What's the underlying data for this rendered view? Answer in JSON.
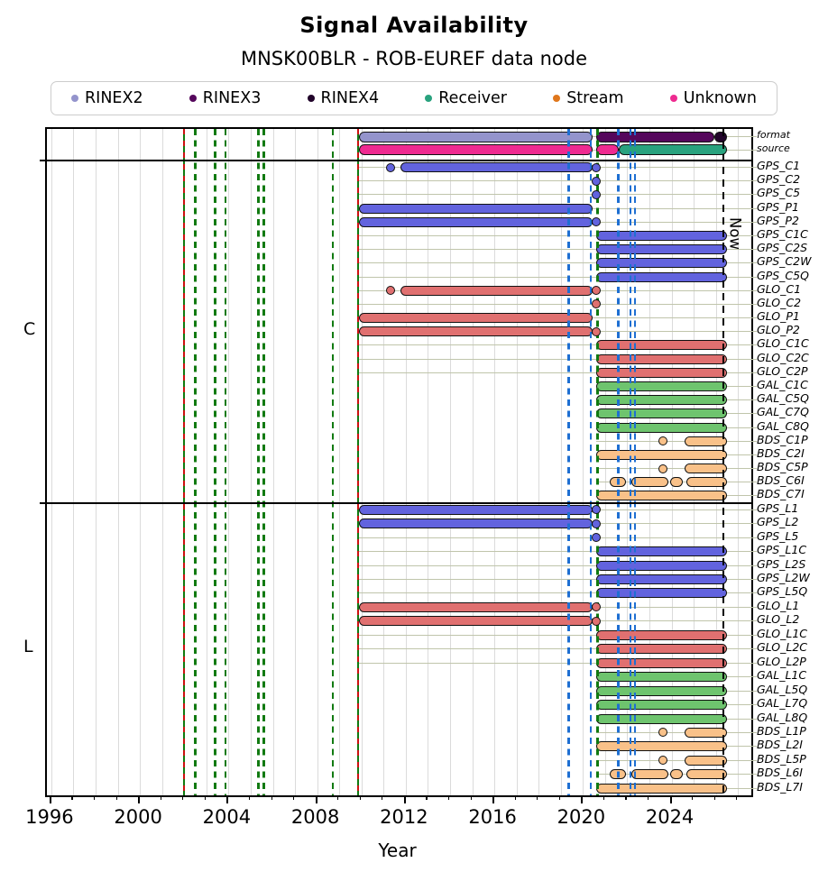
{
  "title": "Signal Availability",
  "subtitle": "MNSK00BLR - ROB-EUREF data node",
  "legend": [
    {
      "label": "RINEX2",
      "color_key": "rinex2"
    },
    {
      "label": "RINEX3",
      "color_key": "rinex3"
    },
    {
      "label": "RINEX4",
      "color_key": "rinex4"
    },
    {
      "label": "Receiver",
      "color_key": "receiver"
    },
    {
      "label": "Stream",
      "color_key": "stream"
    },
    {
      "label": "Unknown",
      "color_key": "unknown"
    }
  ],
  "chart_data": {
    "type": "gantt-availability",
    "title": "Signal Availability",
    "subtitle": "MNSK00BLR - ROB-EUREF data node",
    "xlabel": "Year",
    "now_label": "Now",
    "axis": {
      "xmin": 1995.8,
      "xmax": 2027.6,
      "major_ticks": [
        1996,
        2000,
        2004,
        2008,
        2012,
        2016,
        2020,
        2024
      ],
      "minor_tick_start": 1996,
      "minor_tick_end": 2027,
      "grid": "vertical-yearly"
    },
    "colors": {
      "gps": "#6263de",
      "glo": "#e07070",
      "gal": "#6ec46e",
      "bds": "#f9c189",
      "rinex2": "#9494cc",
      "rinex3": "#55075c",
      "rinex4": "#21042a",
      "receiver": "#29a27e",
      "stream": "#e0771c",
      "unknown": "#ee2a90",
      "event_green": "#117a11",
      "event_blue": "#1e6fd2",
      "event_red": "#cc1111",
      "leader_line": "#c0c5ab"
    },
    "now_x": 2026.35,
    "event_lines": [
      {
        "x": 2002.0,
        "style": "redgreen"
      },
      {
        "x": 2002.5,
        "style": "green"
      },
      {
        "x": 2003.4,
        "style": "green"
      },
      {
        "x": 2003.85,
        "style": "green"
      },
      {
        "x": 2005.35,
        "style": "green"
      },
      {
        "x": 2005.6,
        "style": "green"
      },
      {
        "x": 2008.7,
        "style": "green"
      },
      {
        "x": 2009.85,
        "style": "redgreen"
      },
      {
        "x": 2019.35,
        "style": "blue"
      },
      {
        "x": 2020.35,
        "style": "blue"
      },
      {
        "x": 2020.65,
        "style": "green"
      },
      {
        "x": 2021.6,
        "style": "blue"
      },
      {
        "x": 2022.15,
        "style": "blue"
      },
      {
        "x": 2022.35,
        "style": "blue"
      },
      {
        "x": 2026.35,
        "style": "now"
      }
    ],
    "top_rows": [
      {
        "label": "format",
        "line_start": 2009.85,
        "bars": [
          {
            "s": 2009.9,
            "e": 2020.45,
            "c": "rinex2"
          },
          {
            "s": 2020.6,
            "e": 2025.95,
            "c": "rinex3"
          },
          {
            "s": 2025.95,
            "e": 2026.5,
            "c": "rinex4"
          }
        ]
      },
      {
        "label": "source",
        "line_start": 2009.85,
        "bars": [
          {
            "s": 2009.9,
            "e": 2020.45,
            "c": "unknown"
          },
          {
            "s": 2020.6,
            "e": 2021.6,
            "c": "unknown"
          },
          {
            "s": 2021.6,
            "e": 2026.5,
            "c": "receiver"
          }
        ]
      }
    ],
    "sections": [
      {
        "name": "C",
        "rows": [
          {
            "label": "GPS_C1",
            "color": "gps",
            "line_start": 2009.85,
            "bars": [
              [
                2011.75,
                2020.45
              ]
            ],
            "dots": [
              2011.3,
              2020.6
            ]
          },
          {
            "label": "GPS_C2",
            "color": "gps",
            "line_start": 2009.85,
            "bars": [],
            "dots": [
              2020.6
            ]
          },
          {
            "label": "GPS_C5",
            "color": "gps",
            "line_start": 2009.85,
            "bars": [],
            "dots": [
              2020.6
            ]
          },
          {
            "label": "GPS_P1",
            "color": "gps",
            "line_start": 2009.85,
            "bars": [
              [
                2009.9,
                2020.45
              ]
            ],
            "dots": []
          },
          {
            "label": "GPS_P2",
            "color": "gps",
            "line_start": 2009.85,
            "bars": [
              [
                2009.9,
                2020.45
              ]
            ],
            "dots": [
              2020.6
            ]
          },
          {
            "label": "GPS_C1C",
            "color": "gps",
            "line_start": 2009.85,
            "bars": [
              [
                2020.6,
                2026.5
              ]
            ],
            "dots": []
          },
          {
            "label": "GPS_C2S",
            "color": "gps",
            "line_start": 2009.85,
            "bars": [
              [
                2020.6,
                2026.5
              ]
            ],
            "dots": []
          },
          {
            "label": "GPS_C2W",
            "color": "gps",
            "line_start": 2009.85,
            "bars": [
              [
                2020.6,
                2026.5
              ]
            ],
            "dots": []
          },
          {
            "label": "GPS_C5Q",
            "color": "gps",
            "line_start": 2009.85,
            "bars": [
              [
                2020.6,
                2026.5
              ]
            ],
            "dots": []
          },
          {
            "label": "GLO_C1",
            "color": "glo",
            "line_start": 2009.85,
            "bars": [
              [
                2011.75,
                2020.45
              ]
            ],
            "dots": [
              2011.3,
              2020.6
            ]
          },
          {
            "label": "GLO_C2",
            "color": "glo",
            "line_start": 2009.85,
            "bars": [],
            "dots": [
              2020.6
            ]
          },
          {
            "label": "GLO_P1",
            "color": "glo",
            "line_start": 2009.85,
            "bars": [
              [
                2009.9,
                2020.45
              ]
            ],
            "dots": []
          },
          {
            "label": "GLO_P2",
            "color": "glo",
            "line_start": 2009.85,
            "bars": [
              [
                2009.9,
                2020.45
              ]
            ],
            "dots": [
              2020.6
            ]
          },
          {
            "label": "GLO_C1C",
            "color": "glo",
            "line_start": 2009.85,
            "bars": [
              [
                2020.6,
                2026.5
              ]
            ],
            "dots": []
          },
          {
            "label": "GLO_C2C",
            "color": "glo",
            "line_start": 2009.85,
            "bars": [
              [
                2020.6,
                2026.5
              ]
            ],
            "dots": []
          },
          {
            "label": "GLO_C2P",
            "color": "glo",
            "line_start": 2009.85,
            "bars": [
              [
                2020.6,
                2026.5
              ]
            ],
            "dots": []
          },
          {
            "label": "GAL_C1C",
            "color": "gal",
            "line_start": 2020.6,
            "bars": [
              [
                2020.6,
                2026.5
              ]
            ],
            "dots": []
          },
          {
            "label": "GAL_C5Q",
            "color": "gal",
            "line_start": 2020.6,
            "bars": [
              [
                2020.6,
                2026.5
              ]
            ],
            "dots": []
          },
          {
            "label": "GAL_C7Q",
            "color": "gal",
            "line_start": 2020.6,
            "bars": [
              [
                2020.6,
                2026.5
              ]
            ],
            "dots": []
          },
          {
            "label": "GAL_C8Q",
            "color": "gal",
            "line_start": 2020.6,
            "bars": [
              [
                2020.6,
                2026.5
              ]
            ],
            "dots": []
          },
          {
            "label": "BDS_C1P",
            "color": "bds",
            "line_start": 2020.6,
            "bars": [
              [
                2024.6,
                2026.5
              ]
            ],
            "dots": [
              2023.6
            ]
          },
          {
            "label": "BDS_C2I",
            "color": "bds",
            "line_start": 2020.6,
            "bars": [
              [
                2020.6,
                2026.5
              ]
            ],
            "dots": []
          },
          {
            "label": "BDS_C5P",
            "color": "bds",
            "line_start": 2020.6,
            "bars": [
              [
                2024.6,
                2026.5
              ]
            ],
            "dots": [
              2023.6
            ]
          },
          {
            "label": "BDS_C6I",
            "color": "bds",
            "line_start": 2020.6,
            "bars": [
              [
                2021.2,
                2021.95
              ],
              [
                2022.2,
                2023.85
              ],
              [
                2023.95,
                2024.5
              ],
              [
                2024.65,
                2026.5
              ]
            ],
            "dots": []
          },
          {
            "label": "BDS_C7I",
            "color": "bds",
            "line_start": 2020.6,
            "bars": [
              [
                2020.6,
                2026.5
              ]
            ],
            "dots": []
          }
        ]
      },
      {
        "name": "L",
        "rows": [
          {
            "label": "GPS_L1",
            "color": "gps",
            "line_start": 2009.85,
            "bars": [
              [
                2009.9,
                2020.45
              ]
            ],
            "dots": [
              2020.6
            ]
          },
          {
            "label": "GPS_L2",
            "color": "gps",
            "line_start": 2009.85,
            "bars": [
              [
                2009.9,
                2020.45
              ]
            ],
            "dots": [
              2020.6
            ]
          },
          {
            "label": "GPS_L5",
            "color": "gps",
            "line_start": 2009.85,
            "bars": [],
            "dots": [
              2020.6
            ]
          },
          {
            "label": "GPS_L1C",
            "color": "gps",
            "line_start": 2009.85,
            "bars": [
              [
                2020.6,
                2026.5
              ]
            ],
            "dots": []
          },
          {
            "label": "GPS_L2S",
            "color": "gps",
            "line_start": 2009.85,
            "bars": [
              [
                2020.6,
                2026.5
              ]
            ],
            "dots": []
          },
          {
            "label": "GPS_L2W",
            "color": "gps",
            "line_start": 2009.85,
            "bars": [
              [
                2020.6,
                2026.5
              ]
            ],
            "dots": []
          },
          {
            "label": "GPS_L5Q",
            "color": "gps",
            "line_start": 2009.85,
            "bars": [
              [
                2020.6,
                2026.5
              ]
            ],
            "dots": []
          },
          {
            "label": "GLO_L1",
            "color": "glo",
            "line_start": 2009.85,
            "bars": [
              [
                2009.9,
                2020.45
              ]
            ],
            "dots": [
              2020.6
            ]
          },
          {
            "label": "GLO_L2",
            "color": "glo",
            "line_start": 2009.85,
            "bars": [
              [
                2009.9,
                2020.45
              ]
            ],
            "dots": [
              2020.6
            ]
          },
          {
            "label": "GLO_L1C",
            "color": "glo",
            "line_start": 2009.85,
            "bars": [
              [
                2020.6,
                2026.5
              ]
            ],
            "dots": []
          },
          {
            "label": "GLO_L2C",
            "color": "glo",
            "line_start": 2009.85,
            "bars": [
              [
                2020.6,
                2026.5
              ]
            ],
            "dots": []
          },
          {
            "label": "GLO_L2P",
            "color": "glo",
            "line_start": 2009.85,
            "bars": [
              [
                2020.6,
                2026.5
              ]
            ],
            "dots": []
          },
          {
            "label": "GAL_L1C",
            "color": "gal",
            "line_start": 2020.6,
            "bars": [
              [
                2020.6,
                2026.5
              ]
            ],
            "dots": []
          },
          {
            "label": "GAL_L5Q",
            "color": "gal",
            "line_start": 2020.6,
            "bars": [
              [
                2020.6,
                2026.5
              ]
            ],
            "dots": []
          },
          {
            "label": "GAL_L7Q",
            "color": "gal",
            "line_start": 2020.6,
            "bars": [
              [
                2020.6,
                2026.5
              ]
            ],
            "dots": []
          },
          {
            "label": "GAL_L8Q",
            "color": "gal",
            "line_start": 2020.6,
            "bars": [
              [
                2020.6,
                2026.5
              ]
            ],
            "dots": []
          },
          {
            "label": "BDS_L1P",
            "color": "bds",
            "line_start": 2020.6,
            "bars": [
              [
                2024.6,
                2026.5
              ]
            ],
            "dots": [
              2023.6
            ]
          },
          {
            "label": "BDS_L2I",
            "color": "bds",
            "line_start": 2020.6,
            "bars": [
              [
                2020.6,
                2026.5
              ]
            ],
            "dots": []
          },
          {
            "label": "BDS_L5P",
            "color": "bds",
            "line_start": 2020.6,
            "bars": [
              [
                2024.6,
                2026.5
              ]
            ],
            "dots": [
              2023.6
            ]
          },
          {
            "label": "BDS_L6I",
            "color": "bds",
            "line_start": 2020.6,
            "bars": [
              [
                2021.2,
                2021.95
              ],
              [
                2022.2,
                2023.85
              ],
              [
                2023.95,
                2024.5
              ],
              [
                2024.65,
                2026.5
              ]
            ],
            "dots": []
          },
          {
            "label": "BDS_L7I",
            "color": "bds",
            "line_start": 2020.6,
            "bars": [
              [
                2020.6,
                2026.5
              ]
            ],
            "dots": []
          }
        ]
      }
    ]
  }
}
